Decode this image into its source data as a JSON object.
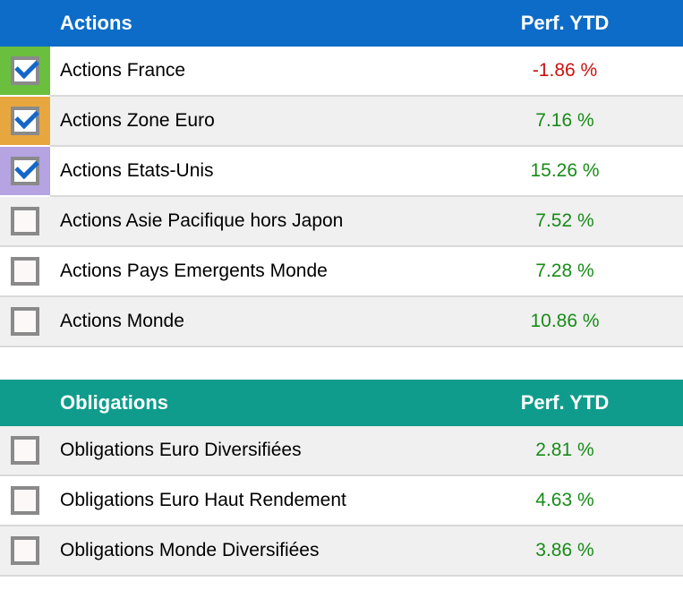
{
  "palette": {
    "actions_header_bg": "#0d6cc8",
    "obligations_header_bg": "#0f9c8c",
    "header_text": "#ffffff",
    "positive_value": "#178c17",
    "negative_value": "#cc1111",
    "row_alt_bg": "#f0f0f0",
    "divider": "#d9d9d9",
    "checkbox_border": "#8a8a8a",
    "checkmark_blue": "#1467c8",
    "highlight_green": "#6abf3f",
    "highlight_orange": "#e8a73e",
    "highlight_purple": "#b5a3e2"
  },
  "tables": [
    {
      "title": "Actions",
      "perf_column_header": "Perf. YTD",
      "rows": [
        {
          "label": "Actions France",
          "value": "-1.86 %",
          "trend": "negative",
          "checked": true,
          "highlight": "green"
        },
        {
          "label": "Actions Zone Euro",
          "value": "7.16 %",
          "trend": "positive",
          "checked": true,
          "highlight": "orange"
        },
        {
          "label": "Actions Etats-Unis",
          "value": "15.26 %",
          "trend": "positive",
          "checked": true,
          "highlight": "purple"
        },
        {
          "label": "Actions Asie Pacifique hors Japon",
          "value": "7.52 %",
          "trend": "positive",
          "checked": false
        },
        {
          "label": "Actions Pays Emergents Monde",
          "value": "7.28 %",
          "trend": "positive",
          "checked": false
        },
        {
          "label": "Actions Monde",
          "value": "10.86 %",
          "trend": "positive",
          "checked": false
        }
      ]
    },
    {
      "title": "Obligations",
      "perf_column_header": "Perf. YTD",
      "rows": [
        {
          "label": "Obligations Euro Diversifiées",
          "value": "2.81 %",
          "trend": "positive",
          "checked": false
        },
        {
          "label": "Obligations Euro Haut Rendement",
          "value": "4.63 %",
          "trend": "positive",
          "checked": false
        },
        {
          "label": "Obligations Monde Diversifiées",
          "value": "3.86 %",
          "trend": "positive",
          "checked": false
        }
      ]
    }
  ]
}
